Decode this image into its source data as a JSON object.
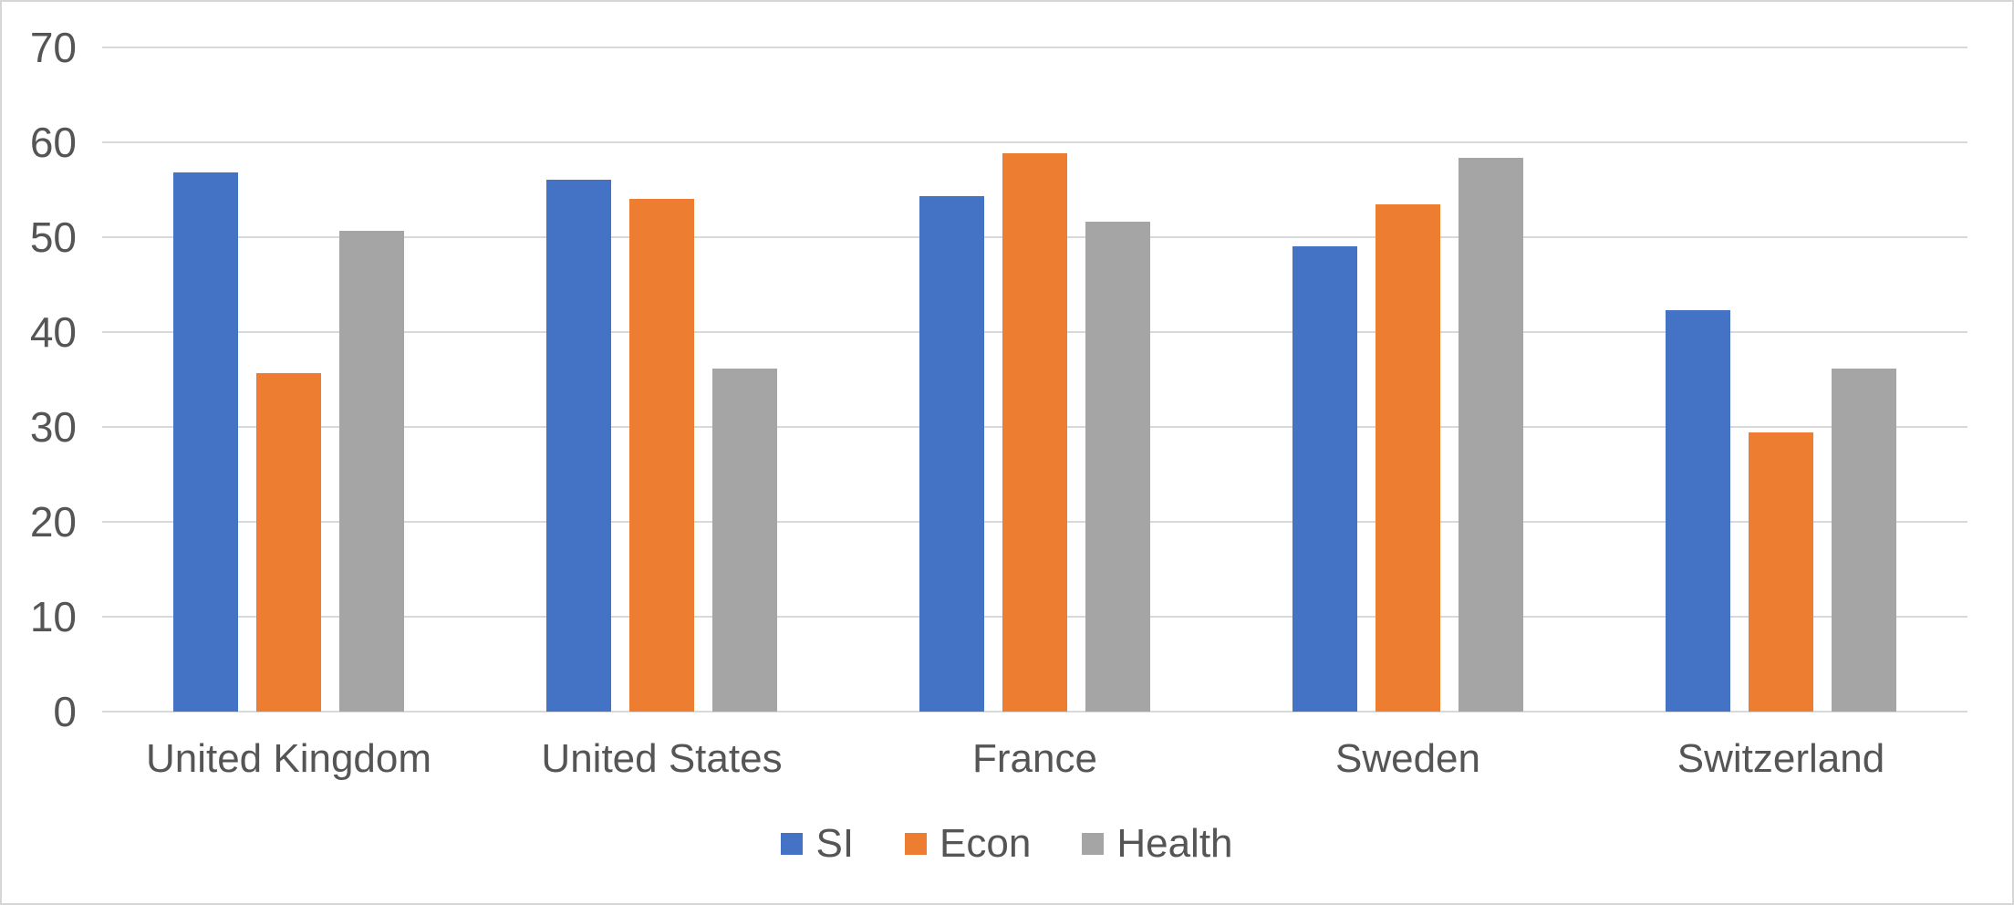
{
  "chart_data": {
    "type": "bar",
    "title": "",
    "xlabel": "",
    "ylabel": "",
    "categories": [
      "United Kingdom",
      "United States",
      "France",
      "Sweden",
      "Switzerland"
    ],
    "series": [
      {
        "name": "SI",
        "color": "#4472C4",
        "values": [
          56.8,
          56.1,
          54.3,
          49.0,
          42.3
        ]
      },
      {
        "name": "Econ",
        "color": "#ED7D31",
        "values": [
          35.7,
          54.0,
          58.8,
          53.5,
          29.4
        ]
      },
      {
        "name": "Health",
        "color": "#A5A5A5",
        "values": [
          50.7,
          36.2,
          51.6,
          58.4,
          36.2
        ]
      }
    ],
    "ylim": [
      0,
      70
    ],
    "yticks": [
      0,
      10,
      20,
      30,
      40,
      50,
      60,
      70
    ],
    "grid": true,
    "legend_position": "bottom-center",
    "colors": {
      "gridline": "#d9d9d9",
      "axis_text": "#555555",
      "background": "#ffffff",
      "frame_border": "#d6d6d6"
    }
  }
}
